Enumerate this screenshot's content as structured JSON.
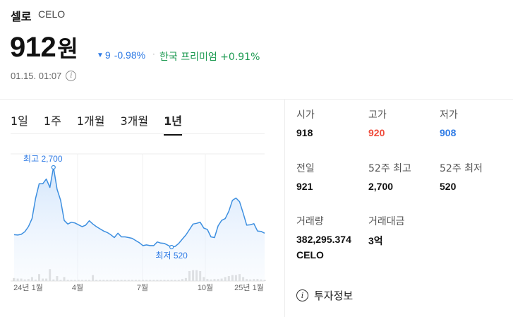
{
  "header": {
    "coin_name": "셀로",
    "ticker": "CELO",
    "price": "912",
    "price_unit": "원",
    "change_value": "9",
    "change_pct": "-0.98%",
    "premium": "한국 프리미엄 +0.91%",
    "timestamp": "01.15. 01:07"
  },
  "tabs": [
    {
      "label": "1일",
      "active": false
    },
    {
      "label": "1주",
      "active": false
    },
    {
      "label": "1개월",
      "active": false
    },
    {
      "label": "3개월",
      "active": false
    },
    {
      "label": "1년",
      "active": true
    }
  ],
  "chart_data": {
    "type": "line",
    "x_ticks": [
      "24년 1월",
      "4월",
      "7월",
      "10월",
      "25년 1월"
    ],
    "high_label": "최고 2,700",
    "low_label": "최저 520",
    "values": [
      860,
      850,
      870,
      940,
      1080,
      1300,
      1850,
      2250,
      2250,
      2380,
      2150,
      2700,
      2100,
      1800,
      1250,
      1150,
      1200,
      1180,
      1130,
      1080,
      1120,
      1240,
      1150,
      1080,
      1020,
      960,
      920,
      860,
      780,
      900,
      800,
      800,
      780,
      760,
      700,
      640,
      560,
      580,
      560,
      560,
      660,
      630,
      620,
      570,
      520,
      540,
      620,
      740,
      850,
      1000,
      1150,
      1170,
      1200,
      1040,
      1000,
      800,
      780,
      1100,
      1250,
      1300,
      1500,
      1800,
      1860,
      1760,
      1450,
      1120,
      1130,
      1160,
      960,
      950,
      900
    ],
    "volume": [
      0.15,
      0.12,
      0.12,
      0.08,
      0.1,
      0.2,
      0.07,
      0.35,
      0.12,
      0.12,
      0.6,
      0.08,
      0.25,
      0.05,
      0.2,
      0.05,
      0.05,
      0.05,
      0.05,
      0.05,
      0.05,
      0.05,
      0.3,
      0.05,
      0.05,
      0.05,
      0.05,
      0.05,
      0.05,
      0.05,
      0.05,
      0.05,
      0.05,
      0.05,
      0.05,
      0.05,
      0.05,
      0.05,
      0.05,
      0.05,
      0.05,
      0.05,
      0.05,
      0.05,
      0.05,
      0.05,
      0.05,
      0.1,
      0.15,
      0.5,
      0.55,
      0.55,
      0.5,
      0.2,
      0.1,
      0.08,
      0.1,
      0.1,
      0.12,
      0.2,
      0.25,
      0.3,
      0.3,
      0.35,
      0.2,
      0.1,
      0.08,
      0.1,
      0.1,
      0.08,
      0.05
    ],
    "ylim": [
      520,
      2700
    ]
  },
  "stats": {
    "open_label": "시가",
    "open": "918",
    "high_label": "고가",
    "high": "920",
    "low_label": "저가",
    "low": "908",
    "prev_label": "전일",
    "prev": "921",
    "w52_high_label": "52주 최고",
    "w52_high": "2,700",
    "w52_low_label": "52주 최저",
    "w52_low": "520",
    "volume_label": "거래량",
    "volume": "382,295.374",
    "volume_unit": "CELO",
    "amount_label": "거래대금",
    "amount": "3억"
  },
  "invest_info": "투자정보",
  "colors": {
    "up": "#ef4b3b",
    "down": "#2f7be5",
    "premium": "#1d9a52",
    "chart_line": "#3d8fe0"
  }
}
